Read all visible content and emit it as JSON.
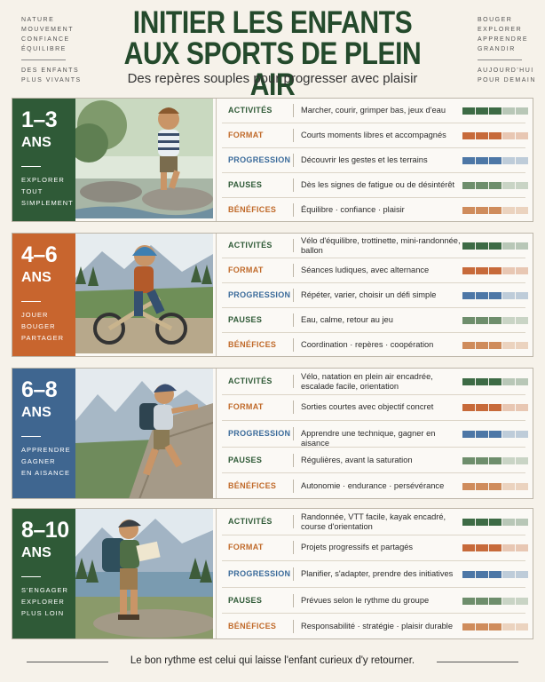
{
  "header": {
    "title_line1": "INITIER LES ENFANTS",
    "title_line2": "AUX SPORTS DE PLEIN AIR",
    "subtitle": "Des repères souples pour progresser avec plaisir",
    "left_words": [
      "NATURE",
      "MOUVEMENT",
      "CONFIANCE",
      "ÉQUILIBRE"
    ],
    "left_bottom": [
      "DES ENFANTS",
      "PLUS VIVANTS"
    ],
    "right_words": [
      "BOUGER",
      "EXPLORER",
      "APPRENDRE",
      "GRANDIR"
    ],
    "right_bottom": [
      "AUJOURD'HUI",
      "POUR DEMAIN"
    ]
  },
  "colors": {
    "green": "#2f5a37",
    "orange": "#c8652e",
    "blue": "#3f6690",
    "label_green": "#2f5a37",
    "label_orange": "#c06a2a",
    "label_blue": "#3a6a9a",
    "bar_activites": "#3d6b45",
    "bar_format": "#c76a3a",
    "bar_progression": "#4d77a6",
    "bar_pauses": "#6e8e6c",
    "bar_benefices": "#cf8c5c"
  },
  "cards": [
    {
      "range": "1–3",
      "ans": "ANS",
      "verbs": [
        "EXPLORER",
        "TOUT",
        "SIMPLEMENT"
      ],
      "photo_icon": "toddler-walking-on-rocks",
      "rows": [
        {
          "label": "ACTIVITÉS",
          "value": "Marcher, courir, grimper bas, jeux d'eau",
          "level": 3
        },
        {
          "label": "FORMAT",
          "value": "Courts moments libres et accompagnés",
          "level": 3
        },
        {
          "label": "PROGRESSION",
          "value": "Découvrir les gestes et les terrains",
          "level": 3
        },
        {
          "label": "PAUSES",
          "value": "Dès les signes de fatigue ou de désintérêt",
          "level": 3
        },
        {
          "label": "BÉNÉFICES",
          "value": "Équilibre · confiance · plaisir",
          "level": 3
        }
      ]
    },
    {
      "range": "4–6",
      "ans": "ANS",
      "verbs": [
        "JOUER",
        "BOUGER",
        "PARTAGER"
      ],
      "photo_icon": "child-on-balance-bike",
      "rows": [
        {
          "label": "ACTIVITÉS",
          "value": "Vélo d'équilibre, trottinette, mini-randonnée, ballon",
          "level": 3
        },
        {
          "label": "FORMAT",
          "value": "Séances ludiques, avec alternance",
          "level": 3
        },
        {
          "label": "PROGRESSION",
          "value": "Répéter, varier, choisir un défi simple",
          "level": 3
        },
        {
          "label": "PAUSES",
          "value": "Eau, calme, retour au jeu",
          "level": 3
        },
        {
          "label": "BÉNÉFICES",
          "value": "Coordination · repères · coopération",
          "level": 3
        }
      ]
    },
    {
      "range": "6–8",
      "ans": "ANS",
      "verbs": [
        "APPRENDRE",
        "GAGNER",
        "EN AISANCE"
      ],
      "photo_icon": "child-climbing-rock",
      "rows": [
        {
          "label": "ACTIVITÉS",
          "value": "Vélo, natation en plein air encadrée, escalade facile, orientation",
          "level": 3
        },
        {
          "label": "FORMAT",
          "value": "Sorties courtes avec objectif concret",
          "level": 3
        },
        {
          "label": "PROGRESSION",
          "value": "Apprendre une technique, gagner en aisance",
          "level": 3
        },
        {
          "label": "PAUSES",
          "value": "Régulières, avant la saturation",
          "level": 3
        },
        {
          "label": "BÉNÉFICES",
          "value": "Autonomie · endurance · persévérance",
          "level": 3
        }
      ]
    },
    {
      "range": "8–10",
      "ans": "ANS",
      "verbs": [
        "S'ENGAGER",
        "EXPLORER",
        "PLUS LOIN"
      ],
      "photo_icon": "child-hiking-with-map",
      "rows": [
        {
          "label": "ACTIVITÉS",
          "value": "Randonnée, VTT facile, kayak encadré, course d'orientation",
          "level": 3
        },
        {
          "label": "FORMAT",
          "value": "Projets progressifs et partagés",
          "level": 3
        },
        {
          "label": "PROGRESSION",
          "value": "Planifier, s'adapter, prendre des initiatives",
          "level": 3
        },
        {
          "label": "PAUSES",
          "value": "Prévues selon le rythme du groupe",
          "level": 3
        },
        {
          "label": "BÉNÉFICES",
          "value": "Responsabilité · stratégie · plaisir durable",
          "level": 3
        }
      ]
    }
  ],
  "footer": {
    "text": "Le bon rythme est celui qui laisse l'enfant curieux d'y retourner."
  }
}
